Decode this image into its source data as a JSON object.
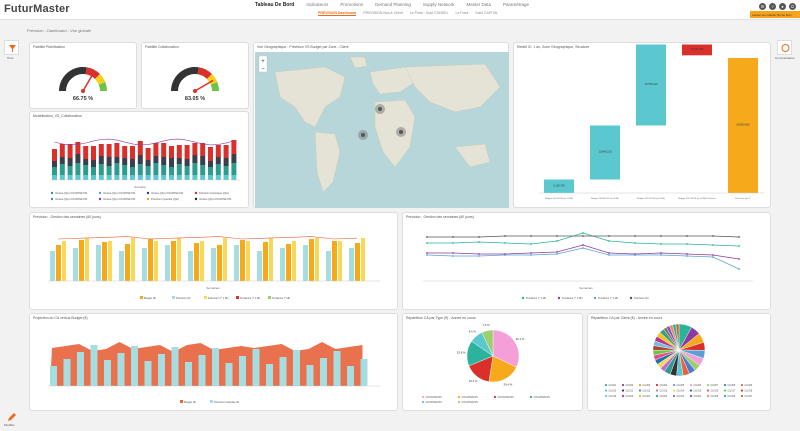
{
  "app": {
    "logo": "FuturMaster"
  },
  "nav": {
    "main": [
      "Tableau De Bord",
      "Indicateurs",
      "Promotions",
      "Demand Planning",
      "Supply Network",
      "Master Data",
      "Paramétrage"
    ],
    "sub": [
      "PREVISION Dashboard",
      "PREVISION Nos & Client",
      "Le Point : Suivi CONSEL",
      "Le Point",
      "Suivi CAPITAL"
    ],
    "orange_button": "Lancer les calculs (fin de flux)",
    "icons": [
      "gear-icon",
      "help-icon",
      "user-icon",
      "logout-icon"
    ]
  },
  "breadcrumb": "Prévision - Dashboard - Vue globale",
  "sidebar": {
    "left_label": "Tous",
    "right_label": "Commentaires",
    "bottom_label": "Modifier"
  },
  "gauges": [
    {
      "title": "Fiabilité Planification",
      "value_text": "66.75 %",
      "value": 66.75
    },
    {
      "title": "Fiabilité Collaboration",
      "value_text": "83.05 %",
      "value": 83.05
    }
  ],
  "map": {
    "title": "Vue Géographique - Prévision VS Budget par Zone - Client"
  },
  "waterfall": {
    "title": "Relatif IC: 1 an, Zone Géographique, Structure",
    "categories": [
      "Budget 2015/2016 (en k€/M)",
      "Budget 2016/2017 (en k€/M)",
      "Budget 2017/2018 (en k€/M)",
      "Budget 2017/2018 (en k€/M) Prévision",
      "Prévision par IC"
    ],
    "labels": [
      "6,150,750",
      "10,645,210",
      "15,756,310",
      "11,547,320",
      "65,850,900"
    ],
    "values": [
      10,
      40,
      60,
      -8,
      100
    ],
    "colors": [
      "#5bc8cf",
      "#5bc8cf",
      "#5bc8cf",
      "#d9302c",
      "#f5a91b"
    ]
  },
  "stacked": {
    "title": "Modélisation_VS_Collaboration",
    "legend": [
      "Ventes (Qté) COURTEFOIS",
      "Ventes (Qté) COURTEFOIS",
      "Ventes (Qté) COURTEFOIS",
      "Prévision Historique (Qté)",
      "Ventes (Qté) COURTEFOIS",
      "Ventes (Qté) COURTEFOIS",
      "Prévision Quantité (Qté)",
      "Ventes (Qté) COURTEFOIS"
    ],
    "legend_colors": [
      "#2e9b8f",
      "#5aa0d6",
      "#3a3f4b",
      "#d9302c",
      "#4c7bd1",
      "#8c3aa0",
      "#f4a12b",
      "#222"
    ],
    "xlabel": "Semaine"
  },
  "prevision_bar": {
    "title": "Prévision - Gestion des semaines (60 jours)",
    "legend": [
      "Budget (€)",
      "Prévision (€)",
      "Exécution (* 1 k€)",
      "Tendance (* 1 k€)",
      "Tendance (* k€)"
    ],
    "colors": [
      "#f5a91b",
      "#a6dde0",
      "#f8d957",
      "#d9302c",
      "#9ccf6e"
    ],
    "xlabel": "Semaines"
  },
  "line_chart": {
    "title": "Prévision - Gestion des semaines (60 jours)",
    "legend": [
      "Tendance (* 1 k€)",
      "Tendance (* 1 k€)",
      "Tendance (* 1 k€)",
      "Prévision (€)"
    ],
    "colors": [
      "#2bb39b",
      "#8c3aa0",
      "#5aa0d6",
      "#555"
    ],
    "xlabel": "Semaines"
  },
  "ca_chart": {
    "title": "Projection du CA versus Budget (€)",
    "legend": [
      "Budget (€)",
      "Prévision Calculée (€)"
    ],
    "colors": [
      "#e8623a",
      "#a6dde0"
    ]
  },
  "pie1": {
    "title": "Répartition CA par Type (€) - Année en cours",
    "values": [
      32.1,
      20.4,
      16.3,
      15.8,
      8.4,
      7.0
    ],
    "labels": [
      "32.1 %",
      "20.4 %",
      "16.3 %",
      "15.8 %",
      "8.4 %",
      "7.0 %"
    ],
    "colors": [
      "#f59fd8",
      "#f5a91b",
      "#d9302c",
      "#2bb39b",
      "#5bc8cf",
      "#9ccf6e"
    ],
    "legend": [
      "COURTEFOIS",
      "COURTEFOIS",
      "COURTEFOIS",
      "COURTEFOIS",
      "COURTEFOIS",
      "COURTEFOIS"
    ]
  },
  "pie2": {
    "title": "Répartition CA par Client (€) - Année en cours",
    "values": [
      8,
      6,
      6,
      5,
      5,
      5,
      4,
      4,
      4,
      4,
      4,
      4,
      3,
      3,
      3,
      3,
      3,
      3,
      3,
      3,
      3,
      3,
      2,
      2,
      2,
      2,
      2
    ],
    "colors": [
      "#2bb39b",
      "#8c3aa0",
      "#f5a91b",
      "#d9302c",
      "#5aa0d6",
      "#f59fd8",
      "#9ccf6e",
      "#4c7bd1",
      "#e8623a",
      "#5bc8cf",
      "#333",
      "#2e9b8f",
      "#c36ad0",
      "#f8d957",
      "#1f6fb2",
      "#e84a8b",
      "#6cc24a",
      "#a64a2b",
      "#7ab8e6",
      "#b4358c",
      "#f0c419",
      "#3f9e7d",
      "#8d6e63",
      "#6a5acd",
      "#ff7f50",
      "#20b2aa",
      "#d2691e"
    ],
    "legend": [
      "CLI001",
      "CLI002",
      "CLI003",
      "CLI004",
      "CLI005",
      "CLI006",
      "CLI007",
      "CLI008",
      "CLI009",
      "CLI010",
      "CLI011",
      "CLI012",
      "CLI013",
      "CLI014",
      "CLI015",
      "CLI016",
      "CLI017",
      "CLI018",
      "CLI019",
      "CLI020",
      "CLI021",
      "CLI022",
      "CLI023",
      "CLI024",
      "CLI025",
      "CLI026",
      "CLI027"
    ]
  }
}
